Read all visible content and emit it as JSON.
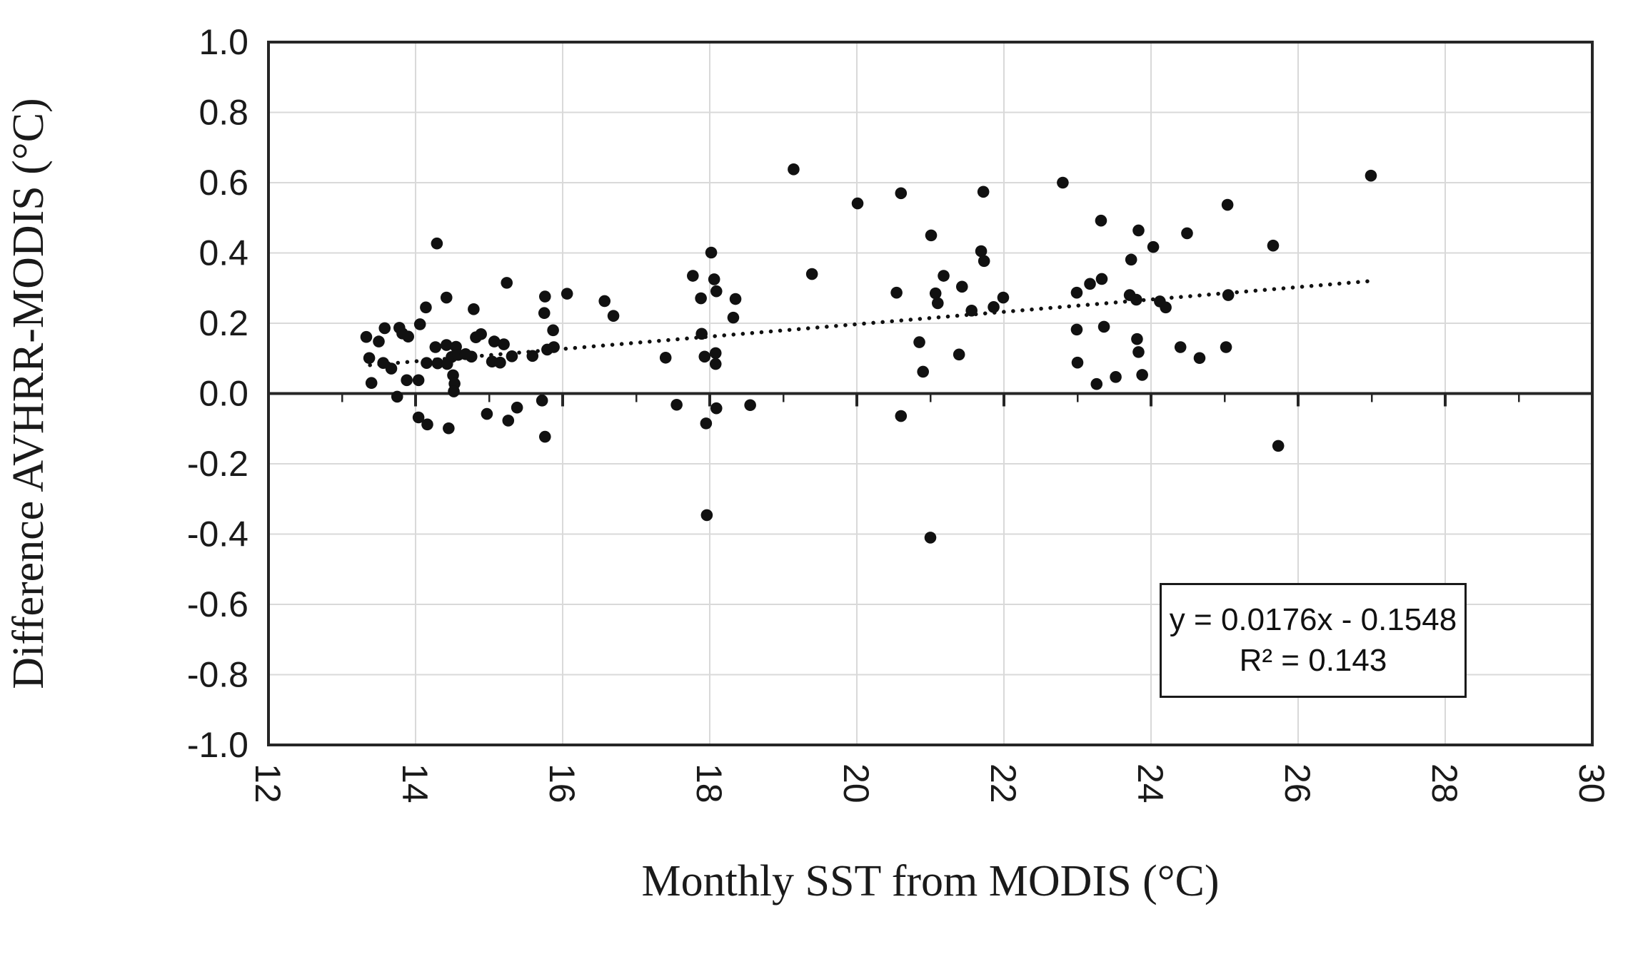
{
  "chart_data": {
    "type": "scatter",
    "title": "",
    "xlabel": "Monthly SST from MODIS (°C)",
    "ylabel": "Difference AVHRR-MODIS (°C)",
    "xlim": [
      12,
      30
    ],
    "ylim": [
      -1.0,
      1.0
    ],
    "x_ticks": [
      12,
      14,
      16,
      18,
      20,
      22,
      24,
      26,
      28,
      30
    ],
    "x_tick_labels": [
      "12",
      "14",
      "16",
      "18",
      "20",
      "22",
      "24",
      "26",
      "28",
      "30"
    ],
    "x_minor_ticks": [
      13,
      14,
      15,
      16,
      17,
      18,
      19,
      20,
      21,
      22,
      23,
      24,
      25,
      26,
      27,
      28,
      29
    ],
    "y_ticks": [
      1.0,
      0.8,
      0.6,
      0.4,
      0.2,
      0.0,
      -0.2,
      -0.4,
      -0.6,
      -0.8,
      -1.0
    ],
    "y_tick_labels": [
      "1.0",
      "0.8",
      "0.6",
      "0.4",
      "0.2",
      "0.0",
      "-0.2",
      "-0.4",
      "-0.6",
      "-0.8",
      "-1.0"
    ],
    "grid": true,
    "legend_position": "none",
    "points": [
      [
        13.33,
        0.161
      ],
      [
        13.37,
        0.101
      ],
      [
        13.4,
        0.03
      ],
      [
        13.5,
        0.148
      ],
      [
        13.56,
        0.087
      ],
      [
        13.58,
        0.186
      ],
      [
        13.67,
        0.071
      ],
      [
        13.75,
        -0.009
      ],
      [
        13.78,
        0.187
      ],
      [
        13.82,
        0.171
      ],
      [
        13.9,
        0.162
      ],
      [
        13.88,
        0.038
      ],
      [
        14.04,
        0.038
      ],
      [
        14.06,
        0.197
      ],
      [
        14.04,
        -0.068
      ],
      [
        14.16,
        -0.088
      ],
      [
        14.45,
        -0.099
      ],
      [
        14.14,
        0.245
      ],
      [
        14.29,
        0.427
      ],
      [
        14.42,
        0.273
      ],
      [
        14.79,
        0.24
      ],
      [
        14.15,
        0.087
      ],
      [
        14.27,
        0.132
      ],
      [
        14.3,
        0.086
      ],
      [
        14.43,
        0.084
      ],
      [
        14.42,
        0.138
      ],
      [
        14.55,
        0.133
      ],
      [
        14.49,
        0.104
      ],
      [
        14.58,
        0.11
      ],
      [
        14.68,
        0.112
      ],
      [
        14.76,
        0.105
      ],
      [
        14.51,
        0.052
      ],
      [
        14.53,
        0.028
      ],
      [
        14.52,
        0.006
      ],
      [
        14.82,
        0.16
      ],
      [
        14.89,
        0.169
      ],
      [
        15.07,
        0.148
      ],
      [
        15.2,
        0.14
      ],
      [
        15.04,
        0.091
      ],
      [
        15.15,
        0.088
      ],
      [
        15.24,
        0.315
      ],
      [
        15.31,
        0.106
      ],
      [
        15.59,
        0.107
      ],
      [
        15.75,
        0.229
      ],
      [
        15.76,
        0.276
      ],
      [
        16.06,
        0.284
      ],
      [
        15.87,
        0.18
      ],
      [
        15.79,
        0.125
      ],
      [
        15.88,
        0.132
      ],
      [
        14.97,
        -0.058
      ],
      [
        15.26,
        -0.077
      ],
      [
        15.38,
        -0.04
      ],
      [
        15.72,
        -0.02
      ],
      [
        15.76,
        -0.123
      ],
      [
        16.57,
        0.263
      ],
      [
        16.69,
        0.221
      ],
      [
        17.4,
        0.102
      ],
      [
        17.55,
        -0.032
      ],
      [
        17.77,
        0.335
      ],
      [
        17.88,
        0.271
      ],
      [
        17.89,
        0.17
      ],
      [
        17.93,
        0.105
      ],
      [
        17.95,
        -0.085
      ],
      [
        17.96,
        -0.346
      ],
      [
        18.02,
        0.401
      ],
      [
        18.06,
        0.325
      ],
      [
        18.09,
        0.291
      ],
      [
        18.08,
        0.115
      ],
      [
        18.08,
        0.084
      ],
      [
        18.09,
        -0.042
      ],
      [
        18.35,
        0.269
      ],
      [
        18.32,
        0.216
      ],
      [
        18.55,
        -0.033
      ],
      [
        19.14,
        0.638
      ],
      [
        19.39,
        0.34
      ],
      [
        20.01,
        0.541
      ],
      [
        20.54,
        0.287
      ],
      [
        20.6,
        0.57
      ],
      [
        20.6,
        -0.064
      ],
      [
        20.85,
        0.146
      ],
      [
        20.9,
        0.062
      ],
      [
        21.0,
        -0.41
      ],
      [
        21.01,
        0.45
      ],
      [
        21.07,
        0.285
      ],
      [
        21.1,
        0.257
      ],
      [
        21.18,
        0.335
      ],
      [
        21.39,
        0.111
      ],
      [
        21.43,
        0.304
      ],
      [
        21.56,
        0.236
      ],
      [
        21.69,
        0.405
      ],
      [
        21.72,
        0.574
      ],
      [
        21.73,
        0.377
      ],
      [
        21.86,
        0.246
      ],
      [
        21.99,
        0.273
      ],
      [
        22.8,
        0.6
      ],
      [
        22.99,
        0.287
      ],
      [
        23.17,
        0.312
      ],
      [
        23.33,
        0.326
      ],
      [
        22.99,
        0.182
      ],
      [
        23.0,
        0.088
      ],
      [
        23.26,
        0.027
      ],
      [
        23.32,
        0.492
      ],
      [
        23.36,
        0.19
      ],
      [
        23.52,
        0.047
      ],
      [
        23.71,
        0.28
      ],
      [
        23.73,
        0.381
      ],
      [
        23.8,
        0.267
      ],
      [
        23.81,
        0.155
      ],
      [
        23.83,
        0.118
      ],
      [
        23.83,
        0.464
      ],
      [
        23.88,
        0.053
      ],
      [
        24.03,
        0.417
      ],
      [
        24.12,
        0.262
      ],
      [
        24.2,
        0.245
      ],
      [
        24.4,
        0.132
      ],
      [
        24.49,
        0.456
      ],
      [
        24.66,
        0.101
      ],
      [
        25.02,
        0.132
      ],
      [
        25.04,
        0.537
      ],
      [
        25.05,
        0.28
      ],
      [
        25.66,
        0.421
      ],
      [
        25.73,
        -0.149
      ],
      [
        26.99,
        0.62
      ]
    ],
    "trendline": {
      "style": "dotted",
      "slope": 0.0176,
      "intercept": -0.1548,
      "x_start": 13.38,
      "x_end": 26.95
    },
    "equation_line1": "y = 0.0176x - 0.1548",
    "equation_line2": "R² = 0.143",
    "colors": {
      "marker": "#111111",
      "grid": "#d9d9d9",
      "axis": "#262626",
      "text": "#1a1a1a",
      "background": "#ffffff"
    }
  }
}
